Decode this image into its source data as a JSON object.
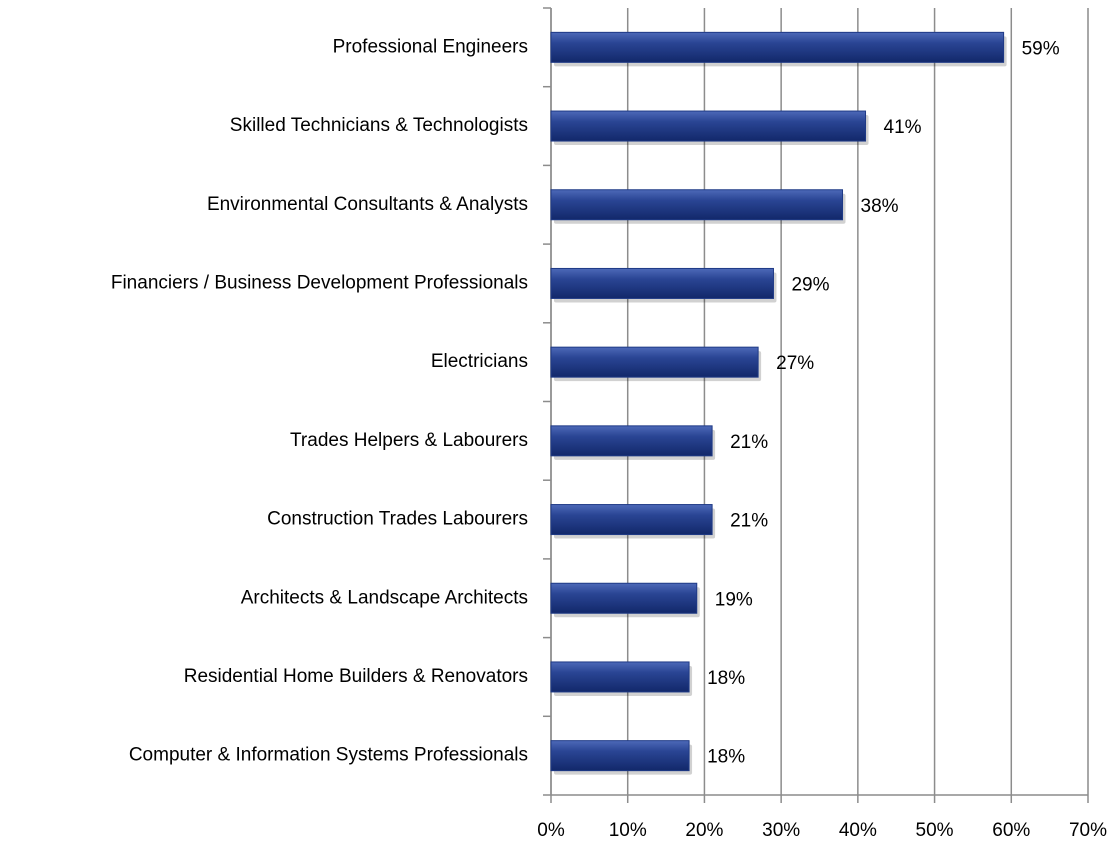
{
  "chart_data": {
    "type": "bar",
    "orientation": "horizontal",
    "categories": [
      "Professional Engineers",
      "Skilled Technicians & Technologists",
      "Environmental Consultants & Analysts",
      "Financiers / Business Development Professionals",
      "Electricians",
      "Trades Helpers & Labourers",
      "Construction Trades Labourers",
      "Architects & Landscape Architects",
      "Residential Home Builders & Renovators",
      "Computer & Information Systems Professionals"
    ],
    "values": [
      59,
      41,
      38,
      29,
      27,
      21,
      21,
      19,
      18,
      18
    ],
    "value_labels": [
      "59%",
      "41%",
      "38%",
      "29%",
      "27%",
      "21%",
      "21%",
      "19%",
      "18%",
      "18%"
    ],
    "color": "#1f3a86",
    "xlim": [
      0,
      70
    ],
    "xticks": [
      {
        "value": 0,
        "label": "0%"
      },
      {
        "value": 10,
        "label": "10%"
      },
      {
        "value": 20,
        "label": "20%"
      },
      {
        "value": 30,
        "label": "30%"
      },
      {
        "value": 40,
        "label": "40%"
      },
      {
        "value": 50,
        "label": "50%"
      },
      {
        "value": 60,
        "label": "60%"
      },
      {
        "value": 70,
        "label": "70%"
      }
    ],
    "grid": true
  }
}
